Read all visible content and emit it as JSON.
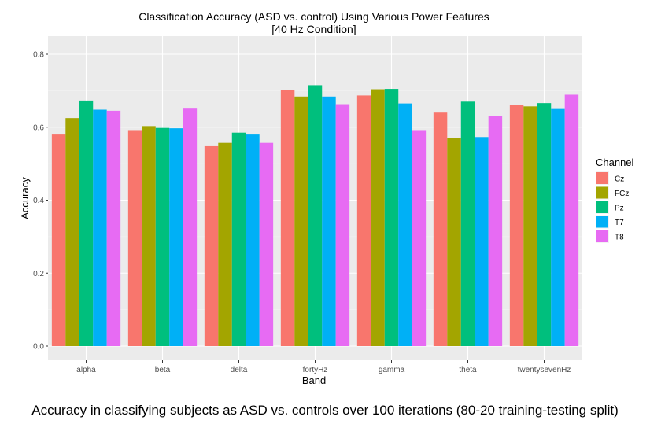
{
  "chart_data": {
    "type": "bar",
    "title": "Classification Accuracy (ASD vs. control) Using Various Power Features",
    "subtitle": "[40 Hz Condition]",
    "xlabel": "Band",
    "ylabel": "Accuracy",
    "ylim": [
      0,
      0.85
    ],
    "yticks": [
      "0.0",
      "0.2",
      "0.4",
      "0.6",
      "0.8"
    ],
    "grid": true,
    "legend_title": "Channel",
    "legend_position": "right",
    "categories": [
      "alpha",
      "beta",
      "delta",
      "fortyHz",
      "gamma",
      "theta",
      "twentysevenHz"
    ],
    "series": [
      {
        "name": "Cz",
        "color": "#F8766D",
        "values": [
          0.582,
          0.592,
          0.55,
          0.702,
          0.687,
          0.64,
          0.66
        ]
      },
      {
        "name": "FCz",
        "color": "#A3A500",
        "values": [
          0.625,
          0.603,
          0.557,
          0.684,
          0.704,
          0.571,
          0.657
        ]
      },
      {
        "name": "Pz",
        "color": "#00BF7D",
        "values": [
          0.673,
          0.598,
          0.585,
          0.715,
          0.705,
          0.67,
          0.666
        ]
      },
      {
        "name": "T7",
        "color": "#00B0F6",
        "values": [
          0.648,
          0.597,
          0.582,
          0.684,
          0.665,
          0.573,
          0.652
        ]
      },
      {
        "name": "T8",
        "color": "#E76BF3",
        "values": [
          0.645,
          0.653,
          0.557,
          0.663,
          0.592,
          0.631,
          0.689
        ]
      }
    ]
  },
  "caption": "Accuracy in classifying subjects as ASD vs. controls over 100 iterations (80-20 training-testing split)"
}
